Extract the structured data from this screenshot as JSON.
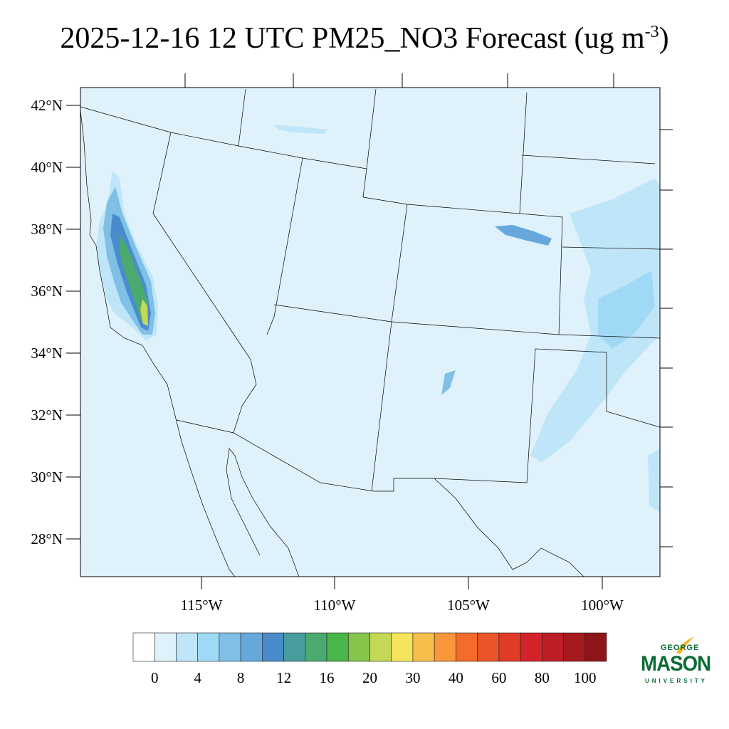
{
  "title": {
    "text": "2025-12-16 12 UTC PM25_NO3 Forecast (ug m",
    "sup": "-3",
    "close": ")"
  },
  "map": {
    "lat_labels": [
      "42°N",
      "40°N",
      "38°N",
      "36°N",
      "34°N",
      "32°N",
      "30°N",
      "28°N"
    ],
    "lon_labels": [
      "115°W",
      "110°W",
      "105°W",
      "100°W"
    ],
    "background_color": "#dff2fb"
  },
  "colorbar": {
    "colors": [
      "#ffffff",
      "#dff2fb",
      "#bfe6f8",
      "#a0d9f6",
      "#80bfe6",
      "#66a8dc",
      "#4a8ccb",
      "#489c9c",
      "#4aaa70",
      "#4ab548",
      "#85c54a",
      "#c3d855",
      "#f6e55c",
      "#f7bf4a",
      "#f7973a",
      "#f46b2a",
      "#ea5429",
      "#e03b27",
      "#d32229",
      "#bb1e24",
      "#a51a1f",
      "#8e1519"
    ],
    "labels": [
      "0",
      "4",
      "8",
      "12",
      "16",
      "20",
      "30",
      "40",
      "60",
      "80",
      "100"
    ]
  },
  "logo": {
    "line1": "GEORGE",
    "line2": "MASON",
    "line3": "UNIVERSITY"
  }
}
